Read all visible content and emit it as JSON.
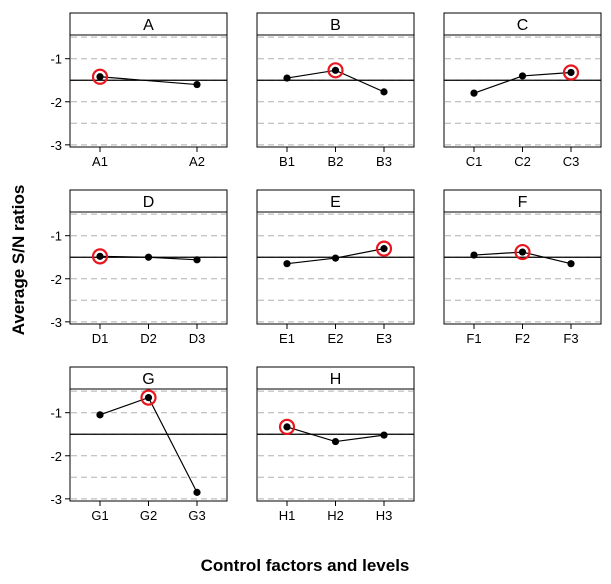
{
  "chart_data": {
    "type": "line",
    "ylabel": "Average S/N ratios",
    "xlabel": "Control factors and levels",
    "ylim": [
      -3.05,
      -0.45
    ],
    "yticks": [
      -1,
      -2,
      -3
    ],
    "ytick_labels": [
      "-1",
      "-2",
      "-3"
    ],
    "reference_line": -1.5,
    "dashed_grid": [
      -0.5,
      -1,
      -1.5,
      -2,
      -2.5,
      -3
    ],
    "grid": true,
    "line_color": "#000000",
    "marker_color": "#000000",
    "highlight_color": "#e8171f",
    "panels": [
      {
        "title": "A",
        "categories": [
          "A1",
          "A2"
        ],
        "values": [
          -1.42,
          -1.6
        ],
        "highlight": 0
      },
      {
        "title": "B",
        "categories": [
          "B1",
          "B2",
          "B3"
        ],
        "values": [
          -1.45,
          -1.27,
          -1.77
        ],
        "highlight": 1
      },
      {
        "title": "C",
        "categories": [
          "C1",
          "C2",
          "C3"
        ],
        "values": [
          -1.8,
          -1.4,
          -1.32
        ],
        "highlight": 2
      },
      {
        "title": "D",
        "categories": [
          "D1",
          "D2",
          "D3"
        ],
        "values": [
          -1.48,
          -1.5,
          -1.56
        ],
        "highlight": 0
      },
      {
        "title": "E",
        "categories": [
          "E1",
          "E2",
          "E3"
        ],
        "values": [
          -1.65,
          -1.52,
          -1.3
        ],
        "highlight": 2
      },
      {
        "title": "F",
        "categories": [
          "F1",
          "F2",
          "F3"
        ],
        "values": [
          -1.45,
          -1.38,
          -1.65
        ],
        "highlight": 1
      },
      {
        "title": "G",
        "categories": [
          "G1",
          "G2",
          "G3"
        ],
        "values": [
          -1.05,
          -0.65,
          -2.85
        ],
        "highlight": 1
      },
      {
        "title": "H",
        "categories": [
          "H1",
          "H2",
          "H3"
        ],
        "values": [
          -1.33,
          -1.67,
          -1.52
        ],
        "highlight": 0
      }
    ]
  }
}
